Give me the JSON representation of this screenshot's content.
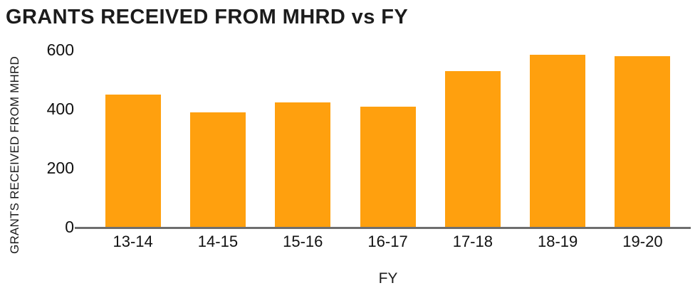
{
  "chart_data": {
    "type": "bar",
    "title": "GRANTS RECEIVED FROM MHRD vs FY",
    "xlabel": "FY",
    "ylabel": "GRANTS RECEIVED FROM MHRD",
    "categories": [
      "13-14",
      "14-15",
      "15-16",
      "16-17",
      "17-18",
      "18-19",
      "19-20"
    ],
    "values": [
      450,
      390,
      425,
      410,
      530,
      585,
      580
    ],
    "yticks": [
      0,
      200,
      400,
      600
    ],
    "ylim": [
      0,
      600
    ],
    "grid": "off",
    "legend": "none",
    "bar_color": "#FFA00E",
    "axis_color": "#6E6E6E",
    "text_color": "#1C1C1C"
  }
}
